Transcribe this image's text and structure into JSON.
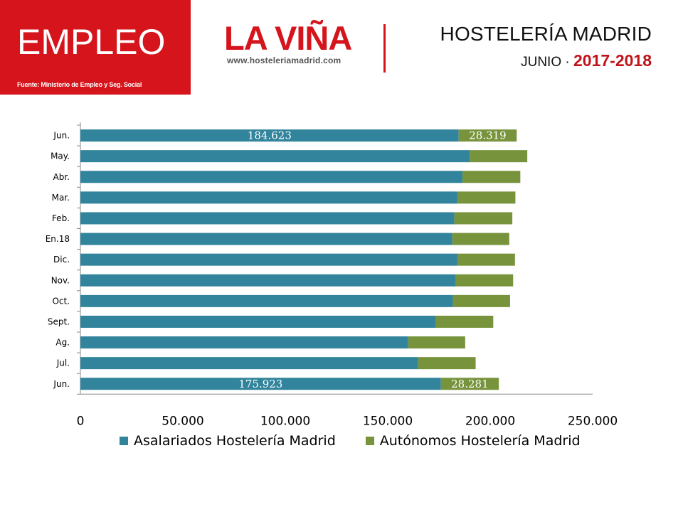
{
  "header": {
    "section_title": "EMPLEO",
    "source": "Fuente: Ministerio de Empleo y Seg. Social",
    "logo_name": "LA VIÑA",
    "logo_url": "www.hosteleriamadrid.com",
    "title": "HOSTELERÍA MADRID",
    "subtitle_prefix": "JUNIO · ",
    "subtitle_years": "2017-2018"
  },
  "colors": {
    "brand_red": "#d5141b",
    "asalariados": "#31849b",
    "autonomos": "#77933c"
  },
  "chart_data": {
    "type": "bar",
    "orientation": "horizontal",
    "stacked": true,
    "categories": [
      "Jun.",
      "May.",
      "Abr.",
      "Mar.",
      "Feb.",
      "En.18",
      "Dic.",
      "Nov.",
      "Oct.",
      "Sept.",
      "Ag.",
      "Jul.",
      "Jun."
    ],
    "series": [
      {
        "name": "Asalariados Hostelería Madrid",
        "values": [
          184623,
          190000,
          186500,
          184000,
          182500,
          181500,
          184000,
          183200,
          181800,
          173500,
          160000,
          164800,
          175923
        ]
      },
      {
        "name": "Autónomos Hostelería Madrid",
        "values": [
          28319,
          28100,
          28200,
          28300,
          28300,
          27800,
          28100,
          28000,
          27900,
          28000,
          27800,
          28100,
          28281
        ]
      }
    ],
    "data_labels": [
      {
        "category_index": 0,
        "series_index": 0,
        "text": "184.623"
      },
      {
        "category_index": 0,
        "series_index": 1,
        "text": "28.319"
      },
      {
        "category_index": 12,
        "series_index": 0,
        "text": "175.923"
      },
      {
        "category_index": 12,
        "series_index": 1,
        "text": "28.281"
      }
    ],
    "x_ticks": [
      "0",
      "50.000",
      "100.000",
      "150.000",
      "200.000",
      "250.000"
    ],
    "xlim": [
      0,
      250000
    ],
    "legend_position": "bottom",
    "grid": false
  }
}
